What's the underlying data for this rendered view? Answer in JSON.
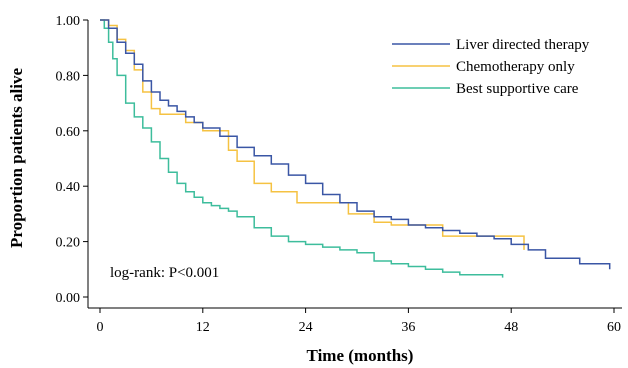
{
  "chart_data": {
    "type": "line",
    "step": true,
    "xlabel": "Time (months)",
    "ylabel": "Proportion patients alive",
    "xlim": [
      0,
      60
    ],
    "ylim": [
      0,
      1
    ],
    "xticks": [
      0,
      12,
      24,
      36,
      48,
      60
    ],
    "yticks": [
      0,
      0.2,
      0.4,
      0.6,
      0.8,
      1.0
    ],
    "xtick_labels": [
      "0",
      "12",
      "24",
      "36",
      "48",
      "60"
    ],
    "ytick_labels": [
      "0.00",
      "0.20",
      "0.40",
      "0.60",
      "0.80",
      "1.00"
    ],
    "grid": false,
    "legend_position": "top-right",
    "annotation": "log-rank: P<0.001",
    "series": [
      {
        "name": "Liver directed therapy",
        "color": "#3a56a5",
        "x": [
          0,
          1,
          2,
          3,
          4,
          5,
          6,
          7,
          8,
          9,
          10,
          11,
          12,
          14,
          16,
          18,
          20,
          22,
          24,
          26,
          28,
          30,
          32,
          34,
          36,
          38,
          40,
          42,
          44,
          46,
          48,
          50,
          52,
          54,
          56,
          59,
          59.5
        ],
        "y": [
          1.0,
          0.97,
          0.92,
          0.88,
          0.84,
          0.78,
          0.74,
          0.71,
          0.69,
          0.67,
          0.65,
          0.63,
          0.61,
          0.58,
          0.54,
          0.51,
          0.48,
          0.44,
          0.41,
          0.37,
          0.34,
          0.31,
          0.29,
          0.28,
          0.26,
          0.25,
          0.24,
          0.23,
          0.22,
          0.21,
          0.19,
          0.17,
          0.14,
          0.14,
          0.12,
          0.12,
          0.1
        ]
      },
      {
        "name": "Chemotherapy only",
        "color": "#f5c242",
        "x": [
          0,
          1,
          2,
          3,
          4,
          5,
          6,
          7,
          8,
          10,
          12,
          15,
          16,
          18,
          19,
          20,
          22,
          23,
          26,
          29,
          32,
          34,
          36,
          40,
          42,
          44,
          46,
          48,
          49.5,
          49.5
        ],
        "y": [
          1.0,
          0.98,
          0.93,
          0.89,
          0.82,
          0.74,
          0.68,
          0.66,
          0.66,
          0.63,
          0.6,
          0.53,
          0.49,
          0.41,
          0.41,
          0.38,
          0.38,
          0.34,
          0.34,
          0.3,
          0.27,
          0.26,
          0.26,
          0.22,
          0.22,
          0.22,
          0.22,
          0.22,
          0.22,
          0.17
        ]
      },
      {
        "name": "Best supportive care",
        "color": "#3dbd9c",
        "x": [
          0,
          0.5,
          1,
          1.5,
          2,
          3,
          4,
          5,
          6,
          7,
          8,
          9,
          10,
          11,
          12,
          13,
          14,
          15,
          16,
          18,
          20,
          22,
          24,
          26,
          28,
          30,
          32,
          34,
          36,
          38,
          40,
          42,
          44,
          46,
          47
        ],
        "y": [
          1.0,
          0.97,
          0.92,
          0.86,
          0.8,
          0.7,
          0.65,
          0.61,
          0.56,
          0.5,
          0.45,
          0.41,
          0.38,
          0.36,
          0.34,
          0.33,
          0.32,
          0.31,
          0.29,
          0.25,
          0.22,
          0.2,
          0.19,
          0.18,
          0.17,
          0.16,
          0.13,
          0.12,
          0.11,
          0.1,
          0.09,
          0.08,
          0.08,
          0.08,
          0.07
        ]
      }
    ]
  }
}
